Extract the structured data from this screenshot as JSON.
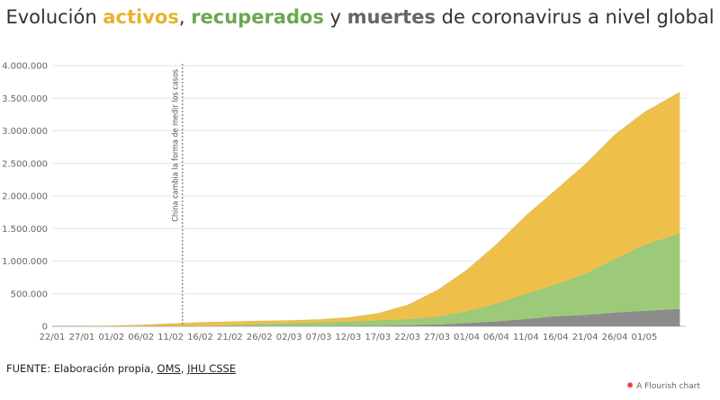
{
  "title": {
    "part1": "Evolución ",
    "activos": "activos",
    "sep1": ", ",
    "recuperados": "recuperados",
    "sep2": " y ",
    "muertes": "muertes",
    "part2": " de coronavirus a nivel global"
  },
  "colors": {
    "activos": "#eec04a",
    "recuperados": "#9dca78",
    "muertes": "#8c8c8c",
    "title_activos": "#e8b22c",
    "title_recuperados": "#6aa84f",
    "title_muertes": "#666666"
  },
  "footer": {
    "source_prefix": "FUENTE: Elaboración propia, ",
    "source_oms": "OMS",
    "source_sep": ", ",
    "source_jhu": "JHU CSSE",
    "brand": "A Flourish chart"
  },
  "chart_data": {
    "type": "area",
    "stacked": true,
    "x": [
      "22/01",
      "27/01",
      "01/02",
      "06/02",
      "11/02",
      "16/02",
      "21/02",
      "26/02",
      "02/03",
      "07/03",
      "12/03",
      "17/03",
      "22/03",
      "27/03",
      "01/04",
      "06/04",
      "11/04",
      "16/04",
      "21/04",
      "26/04",
      "01/05",
      "07/05"
    ],
    "xticks": [
      "22/01",
      "27/01",
      "01/02",
      "06/02",
      "11/02",
      "16/02",
      "21/02",
      "26/02",
      "02/03",
      "07/03",
      "12/03",
      "17/03",
      "22/03",
      "27/03",
      "01/04",
      "06/04",
      "11/04",
      "16/04",
      "21/04",
      "26/04",
      "01/05"
    ],
    "series": [
      {
        "key": "muertes",
        "values": [
          100,
          200,
          300,
          600,
          1100,
          1700,
          2400,
          2800,
          3100,
          3500,
          4700,
          8000,
          15000,
          28000,
          48000,
          76000,
          111000,
          153000,
          175000,
          210000,
          236000,
          265000
        ]
      },
      {
        "key": "recuperados",
        "values": [
          0,
          0,
          500,
          1500,
          3500,
          7500,
          14000,
          32000,
          46000,
          59000,
          66000,
          81000,
          95000,
          118000,
          181000,
          270000,
          387000,
          486000,
          630000,
          820000,
          1010000,
          1160000
        ]
      },
      {
        "key": "activos",
        "values": [
          1000,
          2500,
          8000,
          20000,
          36000,
          51000,
          56000,
          48000,
          40000,
          43000,
          64000,
          110000,
          216000,
          405000,
          635000,
          910000,
          1200000,
          1450000,
          1680000,
          1910000,
          2040000,
          2170000
        ]
      }
    ],
    "yticks": [
      0,
      500000,
      1000000,
      1500000,
      2000000,
      2500000,
      3000000,
      3500000,
      4000000
    ],
    "ytick_labels": [
      "0",
      "500.000",
      "1.000.000",
      "1.500.000",
      "2.000.000",
      "2.500.000",
      "3.000.000",
      "3.500.000",
      "4.000.000"
    ],
    "ylim": [
      0,
      4000000
    ],
    "annotation": {
      "x": "13/02",
      "text": "China cambia la forma de medir los casos"
    },
    "grid": true,
    "legend": "none"
  }
}
